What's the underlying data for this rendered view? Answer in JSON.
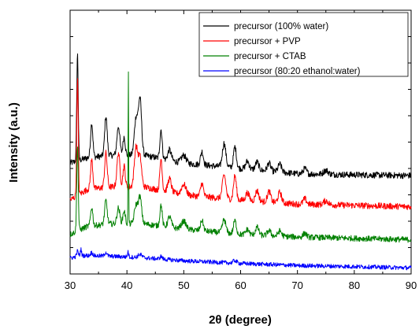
{
  "chart_data": {
    "type": "line",
    "xlabel": "2θ (degree)",
    "ylabel": "Intensity (a.u.)",
    "xlim": [
      30,
      90
    ],
    "ylim": [
      0,
      100
    ],
    "x_ticks": [
      30,
      40,
      50,
      60,
      70,
      80,
      90
    ],
    "y_tick_labels": false,
    "grid": false,
    "legend_position": "top-right",
    "series": [
      {
        "name": "precursor (100% water)",
        "color": "#000000",
        "baseline": [
          [
            30,
            42
          ],
          [
            33,
            44
          ],
          [
            37,
            45
          ],
          [
            43,
            45
          ],
          [
            50,
            42
          ],
          [
            60,
            40
          ],
          [
            70,
            38
          ],
          [
            80,
            37.6
          ],
          [
            90,
            37.3
          ]
        ],
        "peaks": [
          [
            31.3,
            40.5,
            0.13
          ],
          [
            33.8,
            13,
            0.2
          ],
          [
            36.3,
            15,
            0.22
          ],
          [
            38.5,
            11,
            0.25
          ],
          [
            39.5,
            7,
            0.2
          ],
          [
            41.6,
            14,
            0.3
          ],
          [
            42.3,
            21,
            0.28
          ],
          [
            46.0,
            11,
            0.2
          ],
          [
            47.5,
            4,
            0.3
          ],
          [
            50.0,
            3,
            0.4
          ],
          [
            53.2,
            5,
            0.25
          ],
          [
            57.1,
            9,
            0.3
          ],
          [
            59.0,
            8,
            0.25
          ],
          [
            61.2,
            3,
            0.3
          ],
          [
            62.9,
            3,
            0.3
          ],
          [
            65.0,
            3,
            0.3
          ],
          [
            66.9,
            3,
            0.3
          ],
          [
            71.3,
            2,
            0.3
          ],
          [
            75.0,
            1.5,
            0.4
          ]
        ],
        "noise": 1.2
      },
      {
        "name": "precursor + PVP",
        "color": "#ff0000",
        "baseline": [
          [
            30,
            28
          ],
          [
            33,
            32
          ],
          [
            37,
            33
          ],
          [
            43,
            33
          ],
          [
            50,
            30
          ],
          [
            60,
            28
          ],
          [
            70,
            26.5
          ],
          [
            80,
            26
          ],
          [
            90,
            25.5
          ]
        ],
        "peaks": [
          [
            31.3,
            44,
            0.13
          ],
          [
            33.8,
            11,
            0.2
          ],
          [
            36.3,
            13,
            0.22
          ],
          [
            38.5,
            13,
            0.25
          ],
          [
            39.5,
            8,
            0.2
          ],
          [
            41.6,
            15,
            0.3
          ],
          [
            42.3,
            11,
            0.28
          ],
          [
            46.0,
            12,
            0.2
          ],
          [
            47.5,
            5,
            0.3
          ],
          [
            50.0,
            4,
            0.4
          ],
          [
            53.2,
            5,
            0.25
          ],
          [
            57.1,
            9,
            0.3
          ],
          [
            59.0,
            9,
            0.25
          ],
          [
            61.2,
            3,
            0.3
          ],
          [
            62.9,
            4,
            0.3
          ],
          [
            65.0,
            4,
            0.3
          ],
          [
            66.9,
            4,
            0.3
          ],
          [
            71.3,
            2,
            0.3
          ],
          [
            75.0,
            1.5,
            0.4
          ]
        ],
        "noise": 1.2
      },
      {
        "name": "precursor + CTAB",
        "color": "#008000",
        "baseline": [
          [
            30,
            15
          ],
          [
            33,
            18
          ],
          [
            37,
            19
          ],
          [
            43,
            19
          ],
          [
            50,
            17
          ],
          [
            60,
            15
          ],
          [
            70,
            14
          ],
          [
            80,
            13.5
          ],
          [
            90,
            13
          ]
        ],
        "peaks": [
          [
            31.3,
            33,
            0.13
          ],
          [
            33.8,
            7,
            0.2
          ],
          [
            36.3,
            9,
            0.22
          ],
          [
            38.5,
            6,
            0.25
          ],
          [
            39.5,
            5,
            0.2
          ],
          [
            40.25,
            58,
            0.05
          ],
          [
            41.6,
            7,
            0.3
          ],
          [
            42.3,
            10,
            0.28
          ],
          [
            46.0,
            8,
            0.2
          ],
          [
            47.5,
            4,
            0.3
          ],
          [
            50.0,
            3,
            0.4
          ],
          [
            53.2,
            4,
            0.25
          ],
          [
            57.1,
            5,
            0.3
          ],
          [
            59.0,
            5,
            0.25
          ],
          [
            61.2,
            2,
            0.3
          ],
          [
            62.9,
            3,
            0.3
          ],
          [
            65.0,
            2,
            0.3
          ],
          [
            66.9,
            2,
            0.3
          ],
          [
            71.3,
            1.5,
            0.3
          ]
        ],
        "noise": 1.1
      },
      {
        "name": "precursor (80:20 ethanol:water)",
        "color": "#0000ff",
        "baseline": [
          [
            30,
            6
          ],
          [
            32,
            7
          ],
          [
            36,
            6.8
          ],
          [
            42,
            6.3
          ],
          [
            50,
            5
          ],
          [
            60,
            4
          ],
          [
            70,
            3.2
          ],
          [
            80,
            2.8
          ],
          [
            90,
            2.3
          ]
        ],
        "peaks": [
          [
            31.3,
            2,
            0.15
          ],
          [
            31.9,
            2.5,
            0.1
          ],
          [
            33.8,
            1.2,
            0.2
          ],
          [
            36.3,
            1.5,
            0.2
          ],
          [
            40.2,
            2,
            0.1
          ],
          [
            42.3,
            1.2,
            0.3
          ],
          [
            46.0,
            1,
            0.2
          ],
          [
            59.0,
            1,
            0.3
          ]
        ],
        "noise": 0.8
      }
    ]
  }
}
